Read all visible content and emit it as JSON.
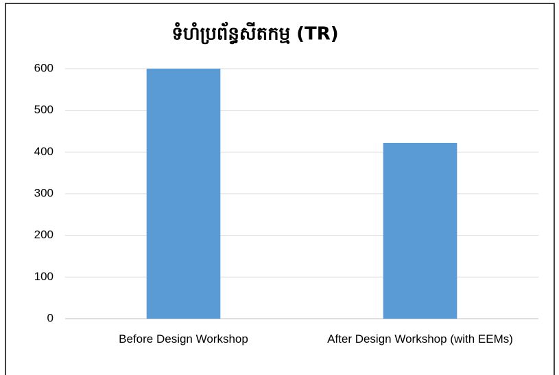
{
  "chart_data": {
    "type": "bar",
    "title": "ទំហំប្រព័ន្ធសីតកម្ម (TR)",
    "categories": [
      "Before Design Workshop",
      "After Design Workshop (with EEMs)"
    ],
    "values": [
      600,
      422
    ],
    "color": "#5b9bd5",
    "ylim": [
      0,
      600
    ],
    "yticks": [
      0,
      100,
      200,
      300,
      400,
      500,
      600
    ],
    "grid": true
  }
}
